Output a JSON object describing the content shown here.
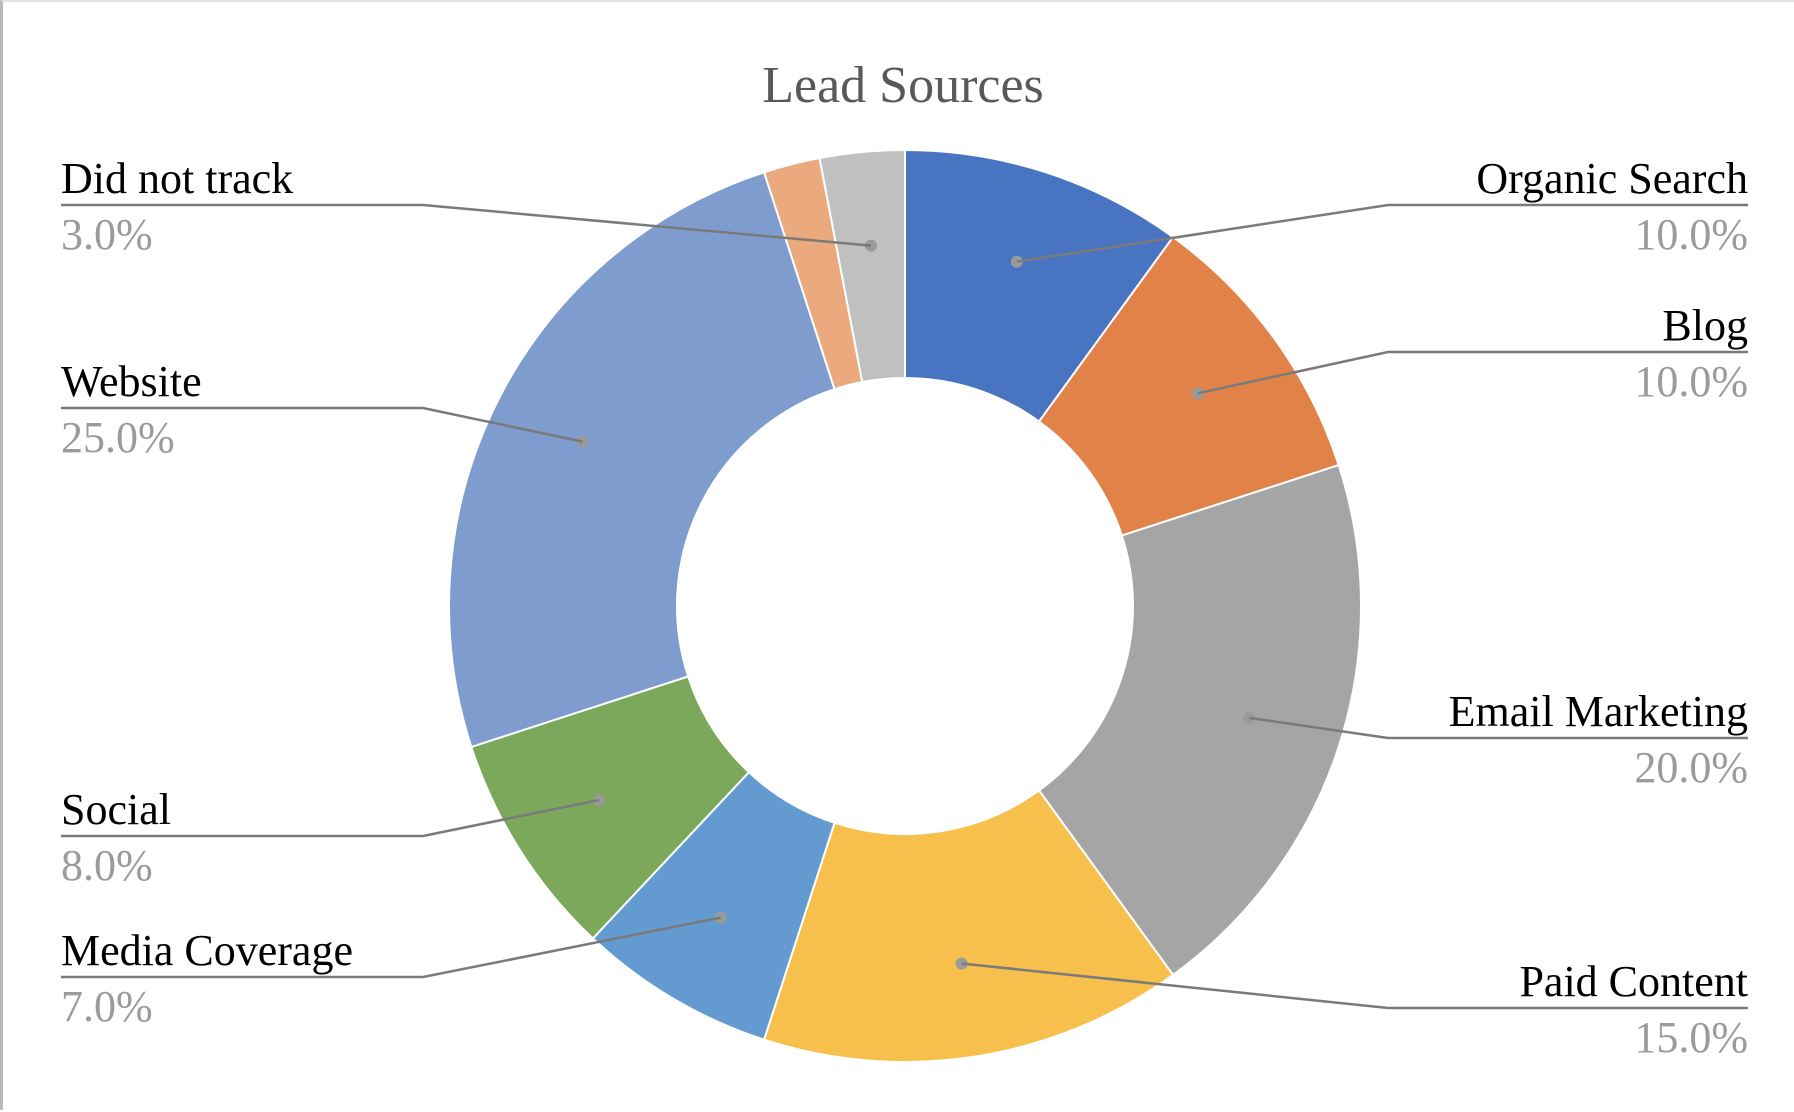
{
  "chart_data": {
    "type": "donut",
    "title": "Lead Sources",
    "slices": [
      {
        "name": "Organic Search",
        "value": 10.0,
        "label": "10.0%",
        "color": "#4874c1"
      },
      {
        "name": "Blog",
        "value": 10.0,
        "label": "10.0%",
        "color": "#e18349"
      },
      {
        "name": "Email Marketing",
        "value": 20.0,
        "label": "20.0%",
        "color": "#a5a5a5"
      },
      {
        "name": "Paid Content",
        "value": 15.0,
        "label": "15.0%",
        "color": "#f7bf4b"
      },
      {
        "name": "Media Coverage",
        "value": 7.0,
        "label": "7.0%",
        "color": "#639bd1"
      },
      {
        "name": "Social",
        "value": 8.0,
        "label": "8.0%",
        "color": "#7ba85a"
      },
      {
        "name": "Website",
        "value": 25.0,
        "label": "25.0%",
        "color": "#7f9ccf"
      },
      {
        "name": "",
        "value": 2.0,
        "label": "",
        "color": "#eba97e"
      },
      {
        "name": "Did not track",
        "value": 3.0,
        "label": "3.0%",
        "color": "#c0c0c0"
      }
    ],
    "start_angle": "12 o'clock",
    "direction": "clockwise",
    "legend": "none",
    "data_labels": "outside with leader lines"
  }
}
